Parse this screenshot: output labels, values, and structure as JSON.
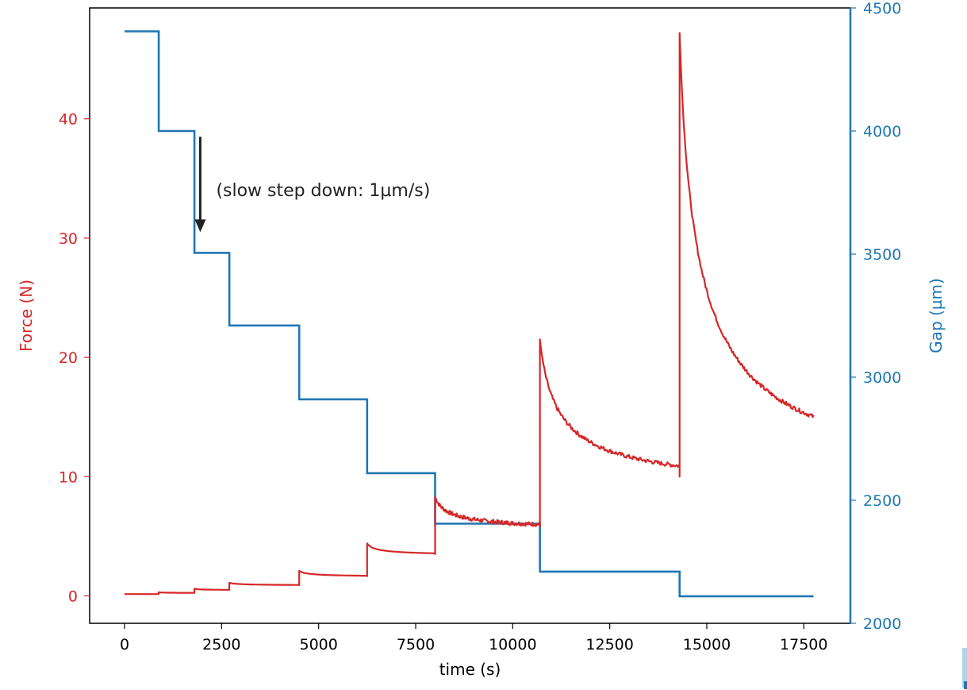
{
  "chart_data": {
    "type": "line",
    "xlabel": "time (s)",
    "y1label": "Force (N)",
    "y2label": "Gap (µm)",
    "xlim": [
      -900,
      18700
    ],
    "y1lim": [
      -2.3,
      49.3
    ],
    "y2lim": [
      2000,
      4500
    ],
    "xticks": [
      0,
      2500,
      5000,
      7500,
      10000,
      12500,
      15000,
      17500
    ],
    "y1ticks": [
      0,
      10,
      20,
      30,
      40
    ],
    "y2ticks": [
      2000,
      2500,
      3000,
      3500,
      4000,
      4500
    ],
    "colors": {
      "force": "#d62728",
      "gap": "#1f77b4",
      "frame": "#000000",
      "annotation": "#222222"
    },
    "annotation": {
      "text": "(slow step down: 1µm/s)",
      "x": 1950,
      "y_top": 38.5,
      "y_bottom": 30.5
    },
    "series": [
      {
        "name": "Gap (µm)",
        "axis": "right",
        "segments": [
          {
            "start": 0,
            "end": 880,
            "value": 4405
          },
          {
            "start": 880,
            "end": 1800,
            "value": 4000
          },
          {
            "start": 1800,
            "end": 2700,
            "value": 3505
          },
          {
            "start": 2700,
            "end": 4500,
            "value": 3210
          },
          {
            "start": 4500,
            "end": 6250,
            "value": 2910
          },
          {
            "start": 6250,
            "end": 8000,
            "value": 2610
          },
          {
            "start": 8000,
            "end": 10700,
            "value": 2405
          },
          {
            "start": 10700,
            "end": 14300,
            "value": 2210
          },
          {
            "start": 14300,
            "end": 17750,
            "value": 2110
          }
        ]
      },
      {
        "name": "Force (N)",
        "axis": "left",
        "segments": [
          {
            "start": 0,
            "end": 880,
            "peak": 0.15,
            "plateau": 0.15
          },
          {
            "start": 880,
            "end": 1800,
            "peak": 0.3,
            "plateau": 0.25
          },
          {
            "start": 1800,
            "end": 2700,
            "peak": 0.6,
            "plateau": 0.5
          },
          {
            "start": 2700,
            "end": 4500,
            "peak": 1.1,
            "plateau": 0.9
          },
          {
            "start": 4500,
            "end": 6250,
            "peak": 2.1,
            "plateau": 1.65
          },
          {
            "start": 6250,
            "end": 8000,
            "peak": 4.4,
            "plateau": 3.5
          },
          {
            "start": 8000,
            "end": 10700,
            "peak": 8.3,
            "plateau": 5.8
          },
          {
            "start": 10700,
            "end": 14300,
            "peak": 21.5,
            "plateau": 10.0
          },
          {
            "start": 14300,
            "end": 17750,
            "peak": 47.2,
            "plateau": 12.3
          }
        ]
      }
    ]
  }
}
